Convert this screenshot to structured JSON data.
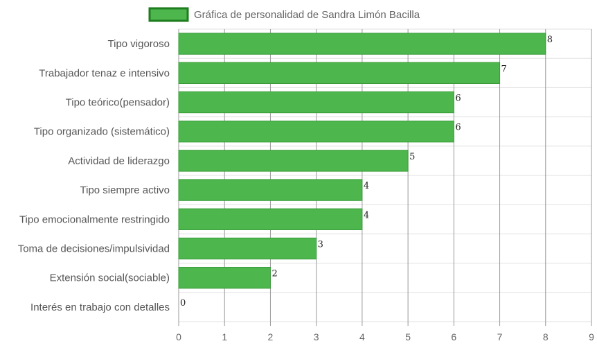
{
  "chart_data": {
    "type": "bar",
    "orientation": "horizontal",
    "categories": [
      "Tipo vigoroso",
      "Trabajador tenaz e intensivo",
      "Tipo teórico(pensador)",
      "Tipo organizado (sistemático)",
      "Actividad de liderazgo",
      "Tipo siempre activo",
      "Tipo emocionalmente restringido",
      "Toma de decisiones/impulsividad",
      "Extensión social(sociable)",
      "Interés en trabajo con detalles"
    ],
    "series": [
      {
        "name": "Gráfica de personalidad de Sandra Limón Bacilla",
        "values": [
          8,
          7,
          6,
          6,
          5,
          4,
          4,
          3,
          2,
          0
        ]
      }
    ],
    "data_labels": [
      "8",
      "7",
      "6",
      "6",
      "5",
      "4",
      "4",
      "3",
      "2",
      "0"
    ],
    "xticks": [
      "0",
      "1",
      "2",
      "3",
      "4",
      "5",
      "6",
      "7",
      "8",
      "9"
    ],
    "xlim": [
      0,
      9
    ],
    "grid": true,
    "legend_position": "top",
    "colors": {
      "bar_fill": "#4db64d",
      "bar_border": "#3a9c3a",
      "legend_fill": "#4db64d",
      "legend_border": "#1e7d1e",
      "grid": "#e0e0e0",
      "vgrid": "#999999"
    }
  }
}
